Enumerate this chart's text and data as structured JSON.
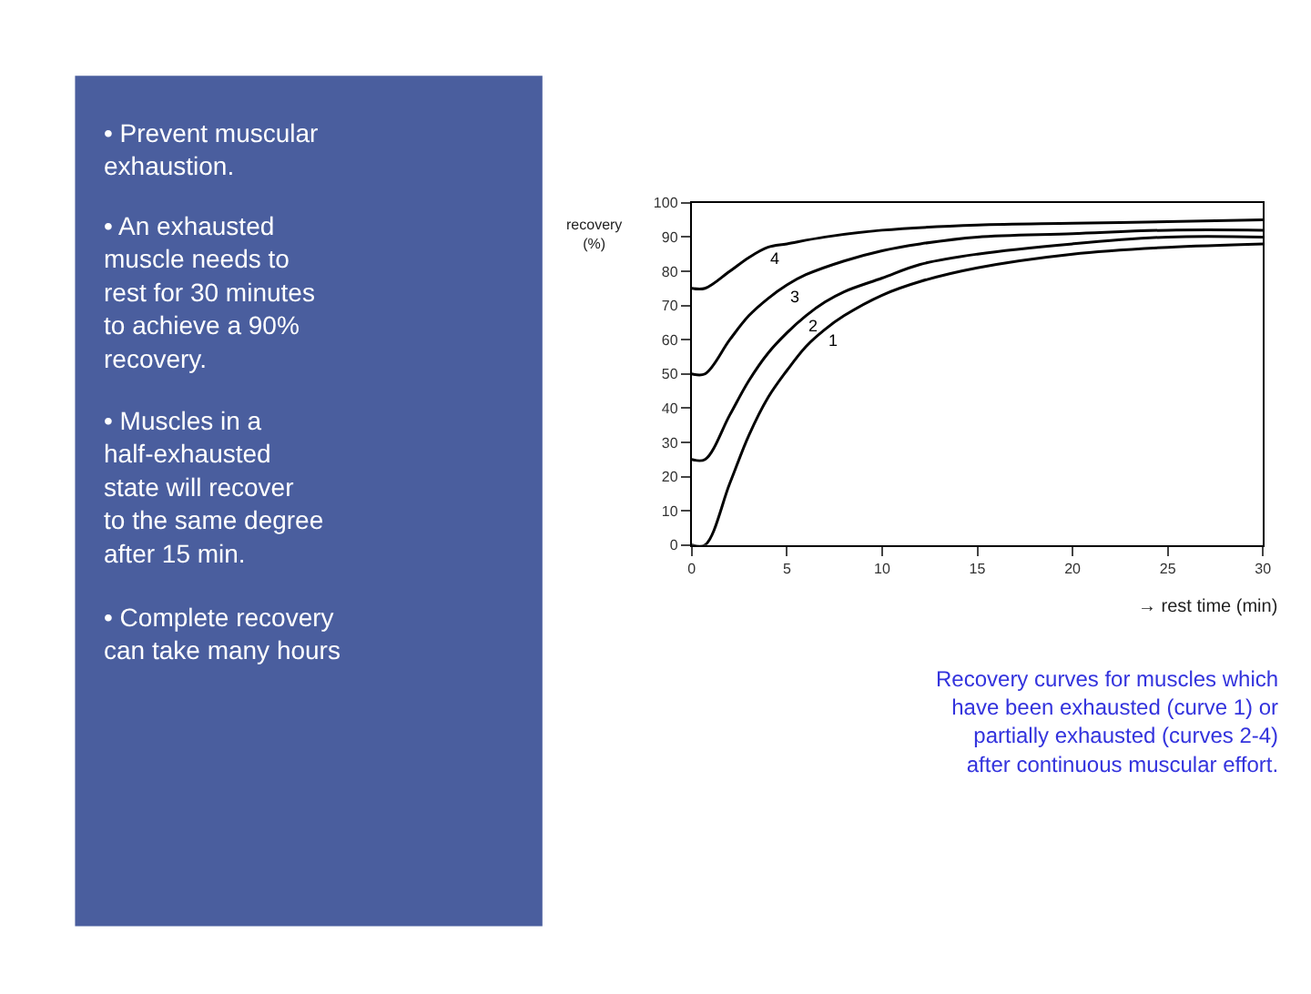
{
  "chart_data": {
    "type": "line",
    "xlabel": "→ rest time (min)",
    "ylabel": "recovery (%)",
    "xlim": [
      0,
      30
    ],
    "ylim": [
      0,
      100
    ],
    "xticks": [
      0,
      5,
      10,
      15,
      20,
      25,
      30
    ],
    "yticks": [
      0,
      10,
      20,
      30,
      40,
      50,
      60,
      70,
      80,
      90,
      100
    ],
    "legend": false,
    "marker": "none",
    "line_style": "solid",
    "series": [
      {
        "color": "#000000",
        "x": [
          0,
          0.7,
          2,
          3,
          4,
          5,
          6,
          7,
          8,
          10,
          12,
          15,
          20,
          25,
          30
        ],
        "values": [
          0,
          0,
          18,
          32,
          43,
          51,
          58,
          63,
          67,
          73,
          77,
          81,
          85,
          87,
          88
        ]
      },
      {
        "color": "#000000",
        "x": [
          0,
          0.7,
          2,
          3,
          4,
          5,
          6,
          7,
          8,
          10,
          12,
          15,
          20,
          25,
          30
        ],
        "values": [
          25,
          25,
          38,
          48,
          56,
          62,
          67,
          71,
          74,
          78,
          82,
          85,
          88,
          90,
          90
        ]
      },
      {
        "color": "#000000",
        "x": [
          0,
          0.7,
          2,
          3,
          4,
          5,
          6,
          8,
          10,
          12,
          15,
          20,
          25,
          30
        ],
        "values": [
          50,
          50,
          60,
          67,
          72,
          76,
          79,
          83,
          86,
          88,
          90,
          91,
          92,
          92
        ]
      },
      {
        "color": "#000000",
        "x": [
          0,
          0.7,
          2,
          3,
          4,
          5,
          7,
          10,
          15,
          20,
          25,
          30
        ],
        "values": [
          75,
          75,
          80,
          84,
          87,
          88,
          90,
          92,
          93.5,
          94,
          94.5,
          95
        ]
      }
    ],
    "annotations": [
      "1",
      "2",
      "3",
      "4",
      "Recovery curves for muscles which have been exhausted (curve 1) or partially exhausted (curves 2-4) after continuous muscular effort.",
      "• Prevent muscular exhaustion.",
      "• An exhausted muscle needs to rest for 30 minutes to achieve a 90% recovery.",
      "• Muscles in a half-exhausted state will recover to the same degree after 15 min.",
      "• Complete recovery can take many hours"
    ]
  }
}
